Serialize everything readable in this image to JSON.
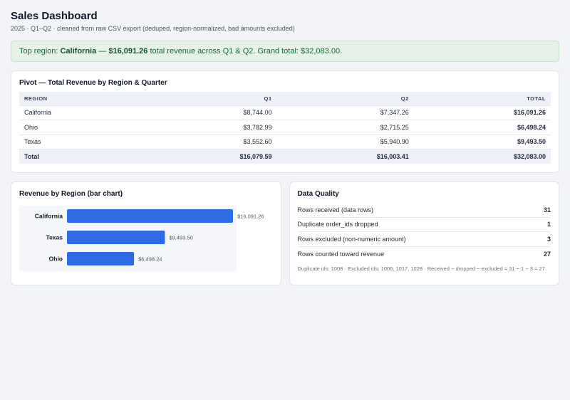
{
  "header": {
    "title": "Sales Dashboard",
    "subtitle": "2025 · Q1–Q2 · cleaned from raw CSV export (deduped, region-normalized, bad amounts excluded)"
  },
  "banner": {
    "prefix": "Top region: ",
    "region": "California",
    "dash": " — ",
    "amount": "$16,091.26",
    "suffix": " total revenue across Q1 & Q2. Grand total: $32,083.00."
  },
  "pivot": {
    "title": "Pivot — Total Revenue by Region & Quarter",
    "columns": [
      "REGION",
      "Q1",
      "Q2",
      "TOTAL"
    ],
    "rows": [
      [
        "California",
        "$8,744.00",
        "$7,347.26",
        "$16,091.26"
      ],
      [
        "Ohio",
        "$3,782.99",
        "$2,715.25",
        "$6,498.24"
      ],
      [
        "Texas",
        "$3,552.60",
        "$5,940.90",
        "$9,493.50"
      ]
    ],
    "total": [
      "Total",
      "$16,079.59",
      "$16,003.41",
      "$32,083.00"
    ]
  },
  "chart_card": {
    "title": "Revenue by Region (bar chart)"
  },
  "chart_data": {
    "type": "bar",
    "orientation": "horizontal",
    "categories": [
      "California",
      "Texas",
      "Ohio"
    ],
    "values": [
      16091.26,
      9493.5,
      6498.24
    ],
    "value_labels": [
      "$16,091.26",
      "$9,493.50",
      "$6,498.24"
    ],
    "xlim": [
      0,
      16091.26
    ],
    "bar_color": "#2f6be4",
    "grid": false
  },
  "data_quality": {
    "title": "Data Quality",
    "rows": [
      {
        "label": "Rows received (data rows)",
        "value": "31"
      },
      {
        "label": "Duplicate order_ids dropped",
        "value": "1"
      },
      {
        "label": "Rows excluded (non-numeric amount)",
        "value": "3"
      },
      {
        "label": "Rows counted toward revenue",
        "value": "27"
      }
    ],
    "footnote": "Duplicate ids: 1008 · Excluded ids: 1006, 1017, 1028 · Received − dropped − excluded = 31 − 1 − 3 = 27."
  }
}
